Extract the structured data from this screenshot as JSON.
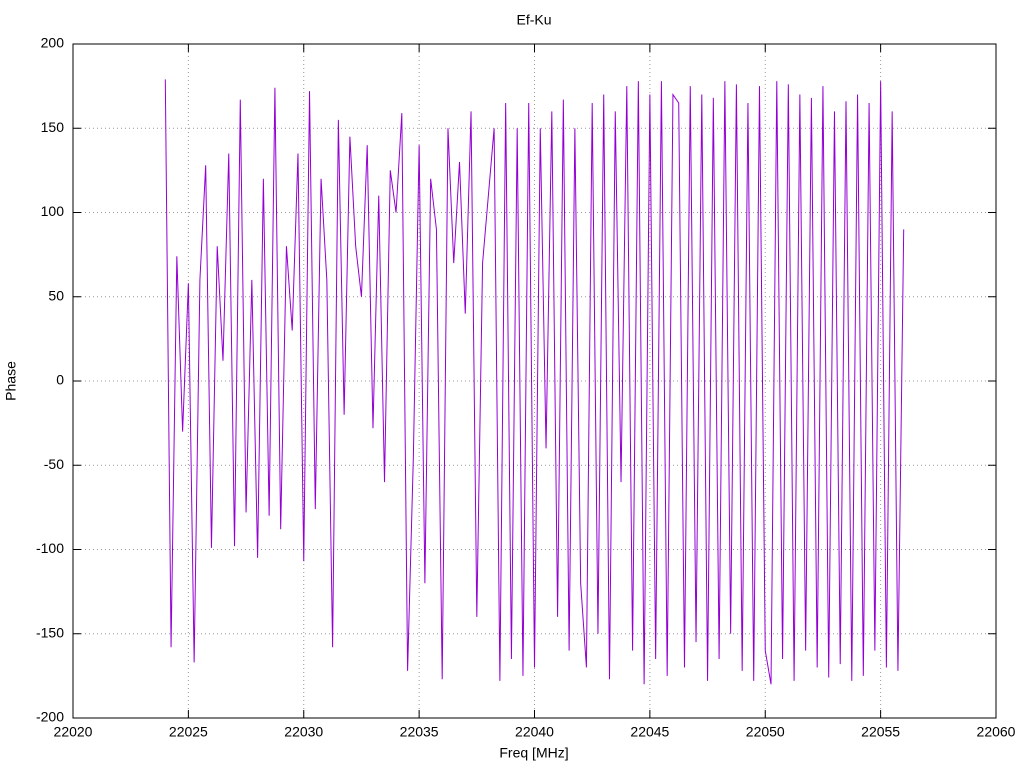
{
  "chart_data": {
    "type": "line",
    "title": "Ef-Ku",
    "x_label": "Freq [MHz]",
    "y_label": "Phase",
    "xlim": [
      22020,
      22060
    ],
    "xticks": [
      22020,
      22025,
      22030,
      22035,
      22040,
      22045,
      22050,
      22055,
      22060
    ],
    "ylim": [
      -200,
      200
    ],
    "yticks": [
      -200,
      -150,
      -100,
      -50,
      0,
      50,
      100,
      150,
      200
    ],
    "grid": true,
    "series": [
      {
        "color": "#9400d3",
        "x": [
          22024,
          22024.25,
          22024.5,
          22024.75,
          22025,
          22025.25,
          22025.5,
          22025.75,
          22026,
          22026.25,
          22026.5,
          22026.75,
          22027,
          22027.25,
          22027.5,
          22027.75,
          22028,
          22028.25,
          22028.5,
          22028.75,
          22029,
          22029.25,
          22029.5,
          22029.75,
          22030,
          22030.25,
          22030.5,
          22030.75,
          22031,
          22031.25,
          22031.5,
          22031.75,
          22032,
          22032.25,
          22032.5,
          22032.75,
          22033,
          22033.25,
          22033.5,
          22033.75,
          22034,
          22034.25,
          22034.5,
          22034.75,
          22035,
          22035.25,
          22035.5,
          22035.75,
          22036,
          22036.25,
          22036.5,
          22036.75,
          22037,
          22037.25,
          22037.5,
          22037.75,
          22038,
          22038.25,
          22038.5,
          22038.75,
          22039,
          22039.25,
          22039.5,
          22039.75,
          22040,
          22040.25,
          22040.5,
          22040.75,
          22041,
          22041.25,
          22041.5,
          22041.75,
          22042,
          22042.25,
          22042.5,
          22042.75,
          22043,
          22043.25,
          22043.5,
          22043.75,
          22044,
          22044.25,
          22044.5,
          22044.75,
          22045,
          22045.25,
          22045.5,
          22045.75,
          22046,
          22046.25,
          22046.5,
          22046.75,
          22047,
          22047.25,
          22047.5,
          22047.75,
          22048,
          22048.25,
          22048.5,
          22048.75,
          22049,
          22049.25,
          22049.5,
          22049.75,
          22050,
          22050.25,
          22050.5,
          22050.75,
          22051,
          22051.25,
          22051.5,
          22051.75,
          22052,
          22052.25,
          22052.5,
          22052.75,
          22053,
          22053.25,
          22053.5,
          22053.75,
          22054,
          22054.25,
          22054.5,
          22054.75,
          22055,
          22055.25,
          22055.5,
          22055.75,
          22056
        ],
        "values": [
          179,
          -158,
          74,
          -30,
          58,
          -167,
          60,
          128,
          -99,
          80,
          12,
          135,
          -98,
          167,
          -78,
          60,
          -105,
          120,
          -80,
          174,
          -88,
          80,
          30,
          135,
          -107,
          172,
          -76,
          120,
          60,
          -158,
          155,
          -20,
          145,
          80,
          50,
          140,
          -28,
          110,
          -60,
          125,
          100,
          159,
          -172,
          -45,
          140,
          -120,
          120,
          90,
          -177,
          150,
          70,
          130,
          40,
          160,
          -140,
          70,
          110,
          150,
          -178,
          165,
          -165,
          150,
          -175,
          165,
          -170,
          150,
          -40,
          160,
          -140,
          167,
          -160,
          150,
          -120,
          -170,
          165,
          -150,
          170,
          -177,
          160,
          -60,
          175,
          -160,
          178,
          -180,
          170,
          -165,
          178,
          -175,
          170,
          165,
          -170,
          175,
          -155,
          170,
          -178,
          168,
          -165,
          178,
          -150,
          176,
          -172,
          165,
          -178,
          175,
          -160,
          -180,
          178,
          -165,
          176,
          -178,
          170,
          -160,
          168,
          -170,
          175,
          -176,
          160,
          -168,
          166,
          -178,
          170,
          -175,
          165,
          -160,
          178,
          -170,
          160,
          -172,
          90
        ]
      }
    ]
  }
}
